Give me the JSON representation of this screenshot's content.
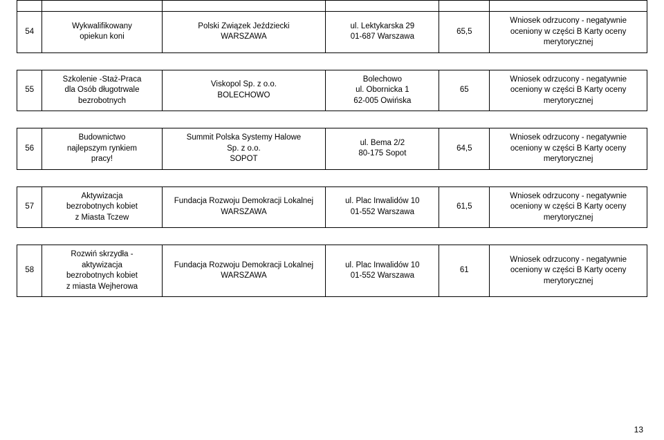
{
  "page_number": "13",
  "rows": [
    {
      "num": "54",
      "title": "Wykwalifikowany\nopiekun koni",
      "org": "Polski Związek Jeździecki\nWARSZAWA",
      "addr": "ul. Lektykarska 29\n01-687 Warszawa",
      "score": "65,5",
      "note": "Wniosek odrzucony - negatywnie\noceniony w części B Karty oceny\nmerytorycznej"
    },
    {
      "num": "55",
      "title": "Szkolenie -Staż-Praca\ndla Osób długotrwale\nbezrobotnych",
      "org": "Viskopol Sp. z o.o.\nBOLECHOWO",
      "addr": "Bolechowo\nul. Obornicka 1\n62-005 Owińska",
      "score": "65",
      "note": "Wniosek odrzucony - negatywnie\noceniony w części B Karty oceny\nmerytorycznej"
    },
    {
      "num": "56",
      "title": "Budownictwo\nnajlepszym rynkiem\npracy!",
      "org": "Summit Polska Systemy Halowe\nSp. z o.o.\nSOPOT",
      "addr": "ul. Bema 2/2\n80-175 Sopot",
      "score": "64,5",
      "note": "Wniosek odrzucony - negatywnie\noceniony w części B Karty oceny\nmerytorycznej"
    },
    {
      "num": "57",
      "title": "Aktywizacja\nbezrobotnych kobiet\nz Miasta Tczew",
      "org": "Fundacja Rozwoju Demokracji Lokalnej\nWARSZAWA",
      "addr": "ul. Plac Inwalidów 10\n01-552 Warszawa",
      "score": "61,5",
      "note": "Wniosek odrzucony - negatywnie\noceniony w części B Karty oceny\nmerytorycznej"
    },
    {
      "num": "58",
      "title": "Rozwiń skrzydła -\naktywizacja\nbezrobotnych kobiet\nz miasta Wejherowa",
      "org": "Fundacja Rozwoju Demokracji Lokalnej\nWARSZAWA",
      "addr": "ul. Plac Inwalidów 10\n01-552 Warszawa",
      "score": "61",
      "note": "Wniosek odrzucony - negatywnie\noceniony w części B Karty oceny\nmerytorycznej"
    }
  ]
}
